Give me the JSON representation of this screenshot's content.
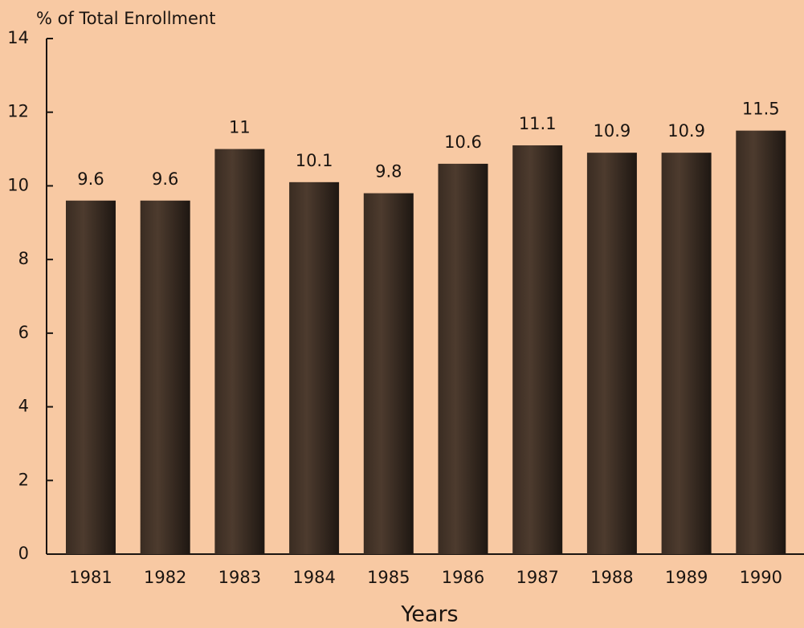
{
  "chart_data": {
    "type": "bar",
    "y_label": "% of Total Enrollment",
    "x_label": "Years",
    "categories": [
      "1981",
      "1982",
      "1983",
      "1984",
      "1985",
      "1986",
      "1987",
      "1988",
      "1989",
      "1990"
    ],
    "values": [
      9.6,
      9.6,
      11,
      10.1,
      9.8,
      10.6,
      11.1,
      10.9,
      10.9,
      11.5
    ],
    "color": "#2b2119",
    "ylim": [
      0,
      14
    ],
    "yticks": [
      0,
      2,
      4,
      6,
      8,
      10,
      12,
      14
    ],
    "grid": false
  }
}
